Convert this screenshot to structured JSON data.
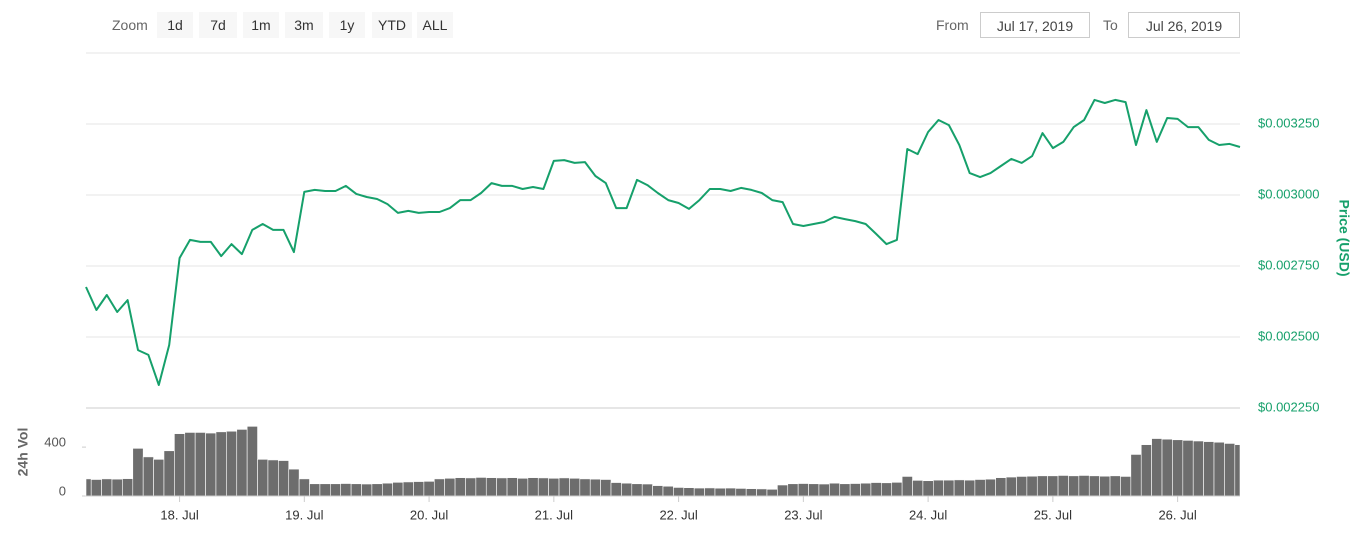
{
  "toolbar": {
    "zoom_label": "Zoom",
    "buttons": [
      "1d",
      "7d",
      "1m",
      "3m",
      "1y",
      "YTD",
      "ALL"
    ],
    "from_label": "From",
    "from": "Jul 17, 2019",
    "to_label": "To",
    "to": "Jul 26, 2019"
  },
  "chart_data": {
    "type": "line",
    "ylabel": "Price (USD)",
    "y2label": "24h Vol",
    "x": [
      "2019-07-17T06:00",
      "2019-07-17T08:00",
      "2019-07-17T10:00",
      "2019-07-17T12:00",
      "2019-07-17T14:00",
      "2019-07-17T16:00",
      "2019-07-17T18:00",
      "2019-07-17T20:00",
      "2019-07-17T22:00",
      "2019-07-18T00:00",
      "2019-07-18T02:00",
      "2019-07-18T04:00",
      "2019-07-18T06:00",
      "2019-07-18T08:00",
      "2019-07-18T10:00",
      "2019-07-18T12:00",
      "2019-07-18T14:00",
      "2019-07-18T16:00",
      "2019-07-18T18:00",
      "2019-07-18T20:00",
      "2019-07-18T22:00",
      "2019-07-19T00:00",
      "2019-07-19T02:00",
      "2019-07-19T04:00",
      "2019-07-19T06:00",
      "2019-07-19T08:00",
      "2019-07-19T10:00",
      "2019-07-19T12:00",
      "2019-07-19T14:00",
      "2019-07-19T16:00",
      "2019-07-19T18:00",
      "2019-07-19T20:00",
      "2019-07-19T22:00",
      "2019-07-20T00:00",
      "2019-07-20T02:00",
      "2019-07-20T04:00",
      "2019-07-20T06:00",
      "2019-07-20T08:00",
      "2019-07-20T10:00",
      "2019-07-20T12:00",
      "2019-07-20T14:00",
      "2019-07-20T16:00",
      "2019-07-20T18:00",
      "2019-07-20T20:00",
      "2019-07-20T22:00",
      "2019-07-21T00:00",
      "2019-07-21T02:00",
      "2019-07-21T04:00",
      "2019-07-21T06:00",
      "2019-07-21T08:00",
      "2019-07-21T10:00",
      "2019-07-21T12:00",
      "2019-07-21T14:00",
      "2019-07-21T16:00",
      "2019-07-21T18:00",
      "2019-07-21T20:00",
      "2019-07-21T22:00",
      "2019-07-22T00:00",
      "2019-07-22T02:00",
      "2019-07-22T04:00",
      "2019-07-22T06:00",
      "2019-07-22T08:00",
      "2019-07-22T10:00",
      "2019-07-22T12:00",
      "2019-07-22T14:00",
      "2019-07-22T16:00",
      "2019-07-22T18:00",
      "2019-07-22T20:00",
      "2019-07-22T22:00",
      "2019-07-23T00:00",
      "2019-07-23T02:00",
      "2019-07-23T04:00",
      "2019-07-23T06:00",
      "2019-07-23T08:00",
      "2019-07-23T10:00",
      "2019-07-23T12:00",
      "2019-07-23T14:00",
      "2019-07-23T16:00",
      "2019-07-23T18:00",
      "2019-07-23T20:00",
      "2019-07-23T22:00",
      "2019-07-24T00:00",
      "2019-07-24T02:00",
      "2019-07-24T04:00",
      "2019-07-24T06:00",
      "2019-07-24T08:00",
      "2019-07-24T10:00",
      "2019-07-24T12:00",
      "2019-07-24T14:00",
      "2019-07-24T16:00",
      "2019-07-24T18:00",
      "2019-07-24T20:00",
      "2019-07-24T22:00",
      "2019-07-25T00:00",
      "2019-07-25T02:00",
      "2019-07-25T04:00",
      "2019-07-25T06:00",
      "2019-07-25T08:00",
      "2019-07-25T10:00",
      "2019-07-25T12:00",
      "2019-07-25T14:00",
      "2019-07-25T16:00",
      "2019-07-25T18:00",
      "2019-07-25T20:00",
      "2019-07-25T22:00",
      "2019-07-26T00:00",
      "2019-07-26T02:00",
      "2019-07-26T04:00",
      "2019-07-26T06:00",
      "2019-07-26T08:00",
      "2019-07-26T10:00",
      "2019-07-26T12:00"
    ],
    "series": [
      {
        "color": "#16a06b",
        "values": [
          0.002676,
          0.002595,
          0.002648,
          0.002588,
          0.00263,
          0.002454,
          0.002437,
          0.002331,
          0.002472,
          0.002778,
          0.002842,
          0.002835,
          0.002835,
          0.002785,
          0.002827,
          0.002792,
          0.002877,
          0.002898,
          0.002877,
          0.002877,
          0.002799,
          0.003011,
          0.003018,
          0.003014,
          0.003014,
          0.003032,
          0.003004,
          0.002993,
          0.002986,
          0.002968,
          0.002937,
          0.002944,
          0.002937,
          0.00294,
          0.00294,
          0.002954,
          0.002982,
          0.002982,
          0.003007,
          0.003042,
          0.003032,
          0.003032,
          0.003021,
          0.003028,
          0.003021,
          0.00312,
          0.003123,
          0.003113,
          0.003116,
          0.003067,
          0.003042,
          0.002954,
          0.002954,
          0.003053,
          0.003035,
          0.003007,
          0.002982,
          0.002972,
          0.002951,
          0.002982,
          0.003021,
          0.003021,
          0.003014,
          0.003025,
          0.003018,
          0.003007,
          0.002982,
          0.002975,
          0.002898,
          0.002891,
          0.002898,
          0.002905,
          0.002923,
          0.002915,
          0.002908,
          0.002898,
          0.002863,
          0.002827,
          0.002842,
          0.003162,
          0.003144,
          0.003222,
          0.003264,
          0.003246,
          0.003176,
          0.003077,
          0.003063,
          0.003077,
          0.003102,
          0.003127,
          0.003113,
          0.003137,
          0.003218,
          0.003165,
          0.003187,
          0.003239,
          0.003264,
          0.003335,
          0.003324,
          0.003335,
          0.003327,
          0.003176,
          0.003299,
          0.003187,
          0.003271,
          0.003268,
          0.003239,
          0.003239,
          0.003194,
          0.003176,
          0.00318,
          0.003169
        ]
      },
      {
        "type": "bar",
        "axis": "y2",
        "color": "#6d6d6d",
        "values": [
          140,
          135,
          140,
          138,
          142,
          390,
          320,
          300,
          370,
          510,
          520,
          520,
          515,
          525,
          530,
          545,
          570,
          300,
          295,
          290,
          220,
          140,
          100,
          100,
          100,
          102,
          100,
          98,
          100,
          105,
          112,
          115,
          118,
          120,
          140,
          145,
          150,
          148,
          152,
          150,
          148,
          150,
          145,
          150,
          148,
          145,
          148,
          145,
          140,
          138,
          135,
          110,
          105,
          100,
          98,
          85,
          80,
          70,
          68,
          65,
          66,
          64,
          65,
          62,
          60,
          58,
          55,
          90,
          100,
          102,
          100,
          98,
          105,
          100,
          102,
          105,
          110,
          108,
          112,
          160,
          128,
          125,
          130,
          130,
          132,
          130,
          135,
          138,
          150,
          155,
          160,
          162,
          165,
          165,
          168,
          165,
          168,
          165,
          162,
          165,
          160,
          340,
          420,
          470,
          465,
          460,
          455,
          450,
          445,
          440,
          430,
          420
        ]
      }
    ],
    "xlim": [
      "2019-07-17T06:00",
      "2019-07-26T12:00"
    ],
    "xticks": [
      {
        "value": "2019-07-18T00:00",
        "label": "18. Jul"
      },
      {
        "value": "2019-07-19T00:00",
        "label": "19. Jul"
      },
      {
        "value": "2019-07-20T00:00",
        "label": "20. Jul"
      },
      {
        "value": "2019-07-21T00:00",
        "label": "21. Jul"
      },
      {
        "value": "2019-07-22T00:00",
        "label": "22. Jul"
      },
      {
        "value": "2019-07-23T00:00",
        "label": "23. Jul"
      },
      {
        "value": "2019-07-24T00:00",
        "label": "24. Jul"
      },
      {
        "value": "2019-07-25T00:00",
        "label": "25. Jul"
      },
      {
        "value": "2019-07-26T00:00",
        "label": "26. Jul"
      }
    ],
    "ylim": [
      0.00225,
      0.0035
    ],
    "yticks": [
      {
        "value": 0.00225,
        "label": "$0.002250"
      },
      {
        "value": 0.0025,
        "label": "$0.002500"
      },
      {
        "value": 0.00275,
        "label": "$0.002750"
      },
      {
        "value": 0.003,
        "label": "$0.003000"
      },
      {
        "value": 0.00325,
        "label": "$0.003250"
      }
    ],
    "y2lim": [
      0,
      720
    ],
    "y2ticks": [
      0,
      400
    ],
    "grid": true
  }
}
